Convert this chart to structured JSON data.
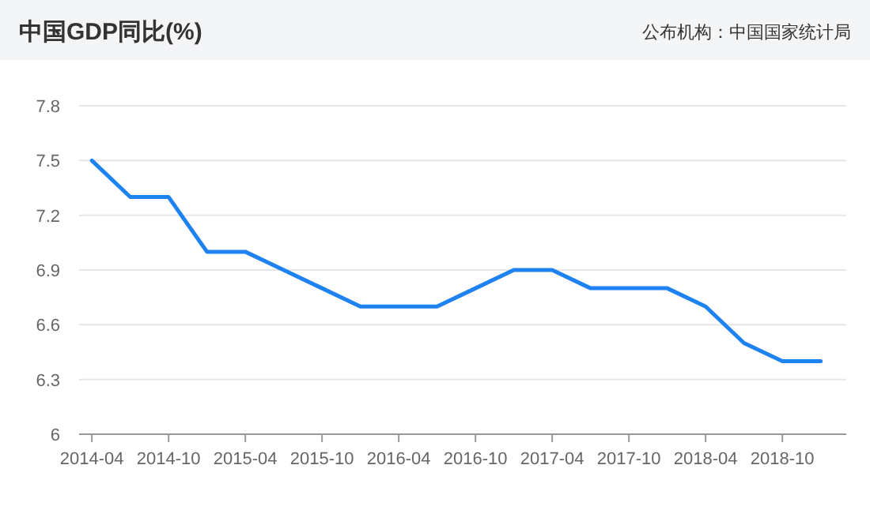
{
  "chart_data": {
    "type": "line",
    "title": "中国GDP同比(%)",
    "annotations": [
      "公布机构：中国国家统计局"
    ],
    "x": [
      "2014-04",
      "2014-07",
      "2014-10",
      "2015-01",
      "2015-04",
      "2015-07",
      "2015-10",
      "2016-01",
      "2016-04",
      "2016-07",
      "2016-10",
      "2017-01",
      "2017-04",
      "2017-07",
      "2017-10",
      "2018-01",
      "2018-04",
      "2018-07",
      "2018-10",
      "2019-01"
    ],
    "series": [
      {
        "color": "#1e82f0",
        "values": [
          7.5,
          7.3,
          7.3,
          7.0,
          7.0,
          6.9,
          6.8,
          6.7,
          6.7,
          6.7,
          6.8,
          6.9,
          6.9,
          6.8,
          6.8,
          6.8,
          6.7,
          6.5,
          6.4,
          6.4
        ]
      }
    ],
    "xlim": [
      "2014-03",
      "2019-03"
    ],
    "xticks": [
      "2014-04",
      "2014-10",
      "2015-04",
      "2015-10",
      "2016-04",
      "2016-10",
      "2017-04",
      "2017-10",
      "2018-04",
      "2018-10"
    ],
    "ylim": [
      6,
      7.8
    ],
    "yticks": [
      6,
      6.3,
      6.6,
      6.9,
      7.2,
      7.5,
      7.8
    ],
    "grid": "y",
    "marker": "none",
    "line_style": "solid"
  }
}
